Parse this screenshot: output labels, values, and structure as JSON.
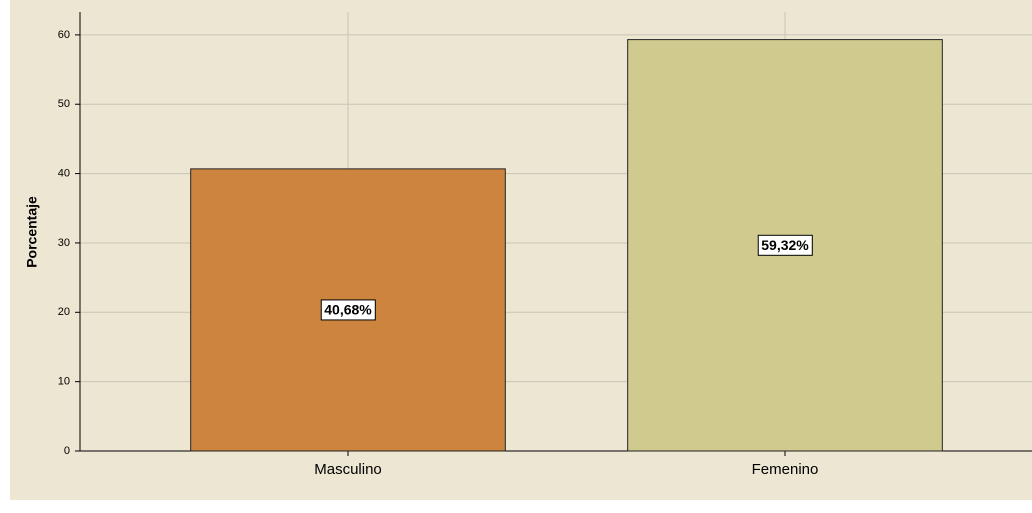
{
  "chart_data": {
    "type": "bar",
    "y_label": "Porcentaje",
    "categories": [
      "Masculino",
      "Femenino"
    ],
    "values": [
      40.68,
      59.32
    ],
    "value_labels": [
      "40,68%",
      "59,32%"
    ],
    "colors": [
      "#cc843f",
      "#d0ca8e"
    ],
    "ylim": [
      0,
      63.3
    ],
    "yticks": [
      0,
      10,
      20,
      30,
      40,
      50,
      60
    ],
    "grid": true
  }
}
